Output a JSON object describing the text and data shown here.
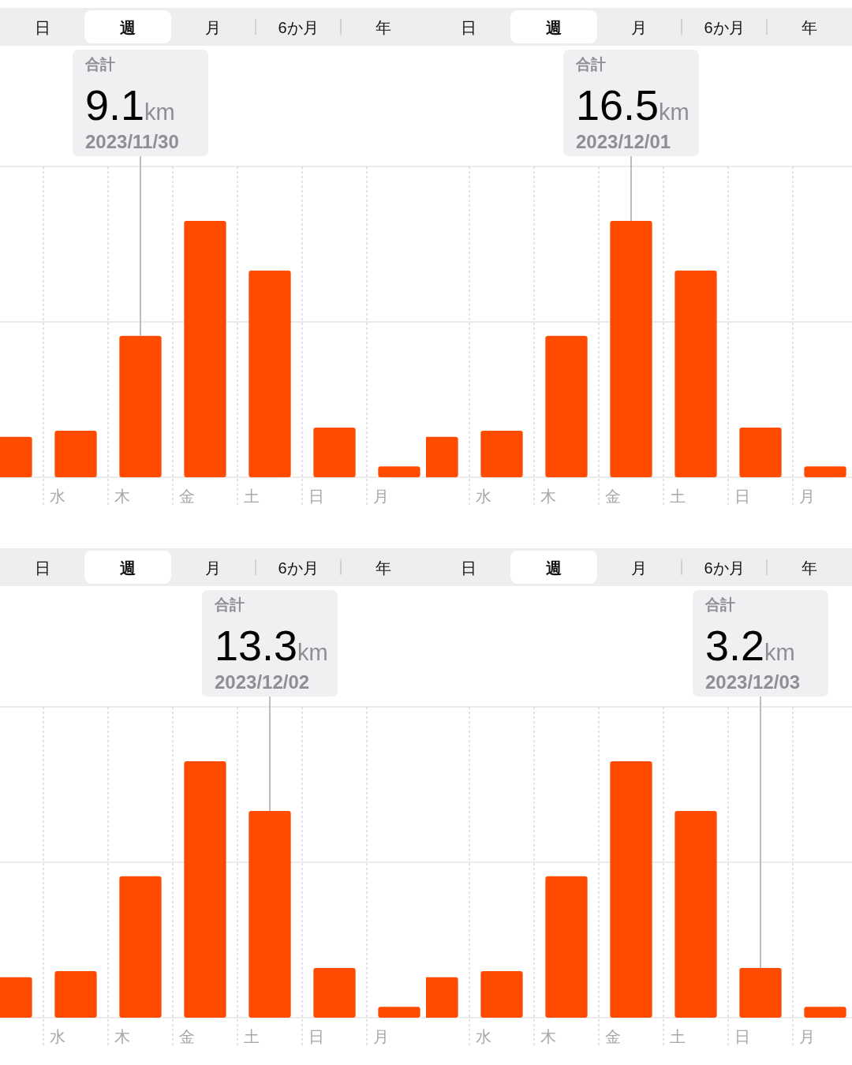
{
  "chart_data": [
    {
      "type": "bar",
      "categories": [
        null,
        "水",
        "木",
        "金",
        "土",
        "日",
        "月"
      ],
      "values": [
        2.6,
        3.0,
        9.1,
        16.5,
        13.3,
        3.2,
        0.7
      ],
      "value_labels": [
        null,
        null,
        "9.1km",
        null,
        null,
        null,
        null
      ],
      "color": "#ff4b00",
      "ylim": [
        0,
        20
      ],
      "yticks": [
        {
          "value": 0,
          "label": null
        },
        {
          "value": 10,
          "label": null
        },
        {
          "value": 20,
          "label": null
        }
      ],
      "grid": true,
      "tick_labels": "x",
      "annotations": [
        "日",
        "週",
        "月",
        "6か月",
        "年",
        "合計",
        "2023/11/30"
      ]
    },
    {
      "type": "bar",
      "categories": [
        null,
        "水",
        "木",
        "金",
        "土",
        "日",
        "月"
      ],
      "values": [
        2.6,
        3.0,
        9.1,
        16.5,
        13.3,
        3.2,
        0.7
      ],
      "value_labels": [
        null,
        null,
        null,
        "16.5km",
        null,
        null,
        null
      ],
      "color": "#ff4b00",
      "ylim": [
        0,
        20
      ],
      "yticks": [
        {
          "value": 0,
          "label": null
        },
        {
          "value": 10,
          "label": null
        },
        {
          "value": 20,
          "label": null
        }
      ],
      "grid": true,
      "tick_labels": "x",
      "annotations": [
        "日",
        "週",
        "月",
        "6か月",
        "年",
        "合計",
        "2023/12/01"
      ]
    },
    {
      "type": "bar",
      "categories": [
        null,
        "水",
        "木",
        "金",
        "土",
        "日",
        "月"
      ],
      "values": [
        2.6,
        3.0,
        9.1,
        16.5,
        13.3,
        3.2,
        0.7
      ],
      "value_labels": [
        null,
        null,
        null,
        null,
        "13.3km",
        null,
        null
      ],
      "color": "#ff4b00",
      "ylim": [
        0,
        20
      ],
      "yticks": [
        {
          "value": 0,
          "label": null
        },
        {
          "value": 10,
          "label": null
        },
        {
          "value": 20,
          "label": null
        }
      ],
      "grid": true,
      "tick_labels": "x",
      "annotations": [
        "日",
        "週",
        "月",
        "6か月",
        "年",
        "合計",
        "2023/12/02"
      ]
    },
    {
      "type": "bar",
      "categories": [
        null,
        "水",
        "木",
        "金",
        "土",
        "日",
        "月"
      ],
      "values": [
        2.6,
        3.0,
        9.1,
        16.5,
        13.3,
        3.2,
        0.7
      ],
      "value_labels": [
        null,
        null,
        null,
        null,
        null,
        "3.2km",
        null
      ],
      "color": "#ff4b00",
      "ylim": [
        0,
        20
      ],
      "yticks": [
        {
          "value": 0,
          "label": null
        },
        {
          "value": 10,
          "label": null
        },
        {
          "value": 20,
          "label": null
        }
      ],
      "grid": true,
      "tick_labels": "x",
      "annotations": [
        "日",
        "週",
        "月",
        "6か月",
        "年",
        "合計",
        "2023/12/03"
      ]
    }
  ]
}
